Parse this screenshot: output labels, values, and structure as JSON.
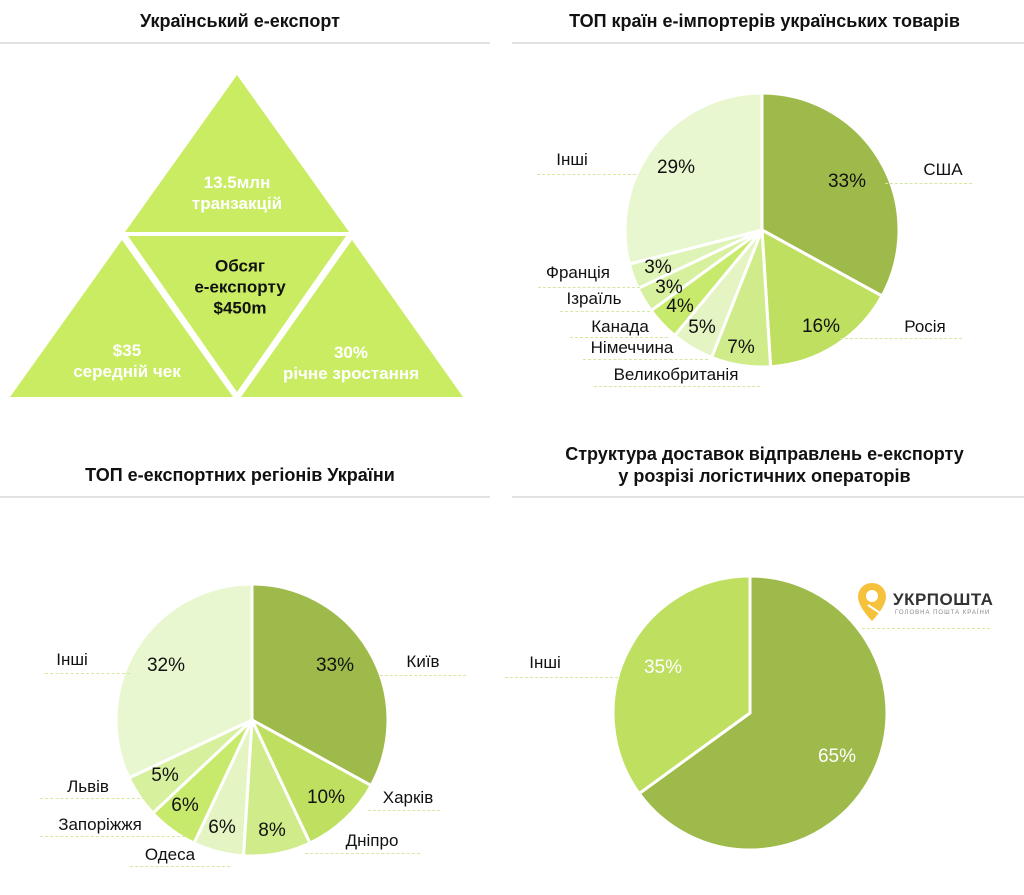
{
  "panels": {
    "export": {
      "title": "Український е-експорт",
      "top": "13.5млн\nтранзакцій",
      "center": "Обсяг\nе-експорту\n$450m",
      "left": "$35\nсередній чек",
      "right": "30%\nрічне зростання",
      "color": "#c9ec62"
    },
    "logo": {
      "name": "УКРПОШТА",
      "tagline": "ГОЛОВНА ПОШТА КРАЇНИ",
      "pin_color": "#f7c23b"
    }
  },
  "chart_data": [
    {
      "type": "pie",
      "title": "ТОП країн е-імпортерів українських товарів",
      "categories": [
        "США",
        "Росія",
        "Великобританія",
        "Німеччина",
        "Канада",
        "Ізраїль",
        "Франція",
        "Інші"
      ],
      "values": [
        33,
        16,
        7,
        5,
        4,
        3,
        3,
        29
      ],
      "labels": [
        "33%",
        "16%",
        "7%",
        "5%",
        "4%",
        "3%",
        "3%",
        "29%"
      ],
      "colors": [
        "#9dba4b",
        "#bedf5f",
        "#d0ec8a",
        "#e4f4c3",
        "#c8ea6c",
        "#d6f09e",
        "#def3b6",
        "#e8f7cf"
      ]
    },
    {
      "type": "pie",
      "title": "ТОП е-експортних регіонів України",
      "categories": [
        "Київ",
        "Харків",
        "Дніпро",
        "Одеса",
        "Запоріжжя",
        "Львів",
        "Інші"
      ],
      "values": [
        33,
        10,
        8,
        6,
        6,
        5,
        32
      ],
      "labels": [
        "33%",
        "10%",
        "8%",
        "6%",
        "6%",
        "5%",
        "32%"
      ],
      "colors": [
        "#9dba4b",
        "#bedf5f",
        "#d0ec8a",
        "#e4f4c3",
        "#c8ea6c",
        "#d6f09e",
        "#e8f7cf"
      ]
    },
    {
      "type": "pie",
      "title": "Структура доставок відправлень е-експорту\nу розрізі логістичних операторів",
      "categories": [
        "УКРПОШТА",
        "Інші"
      ],
      "values": [
        65,
        35
      ],
      "labels": [
        "65%",
        "35%"
      ],
      "colors": [
        "#9dba4b",
        "#bedf5f"
      ]
    }
  ]
}
